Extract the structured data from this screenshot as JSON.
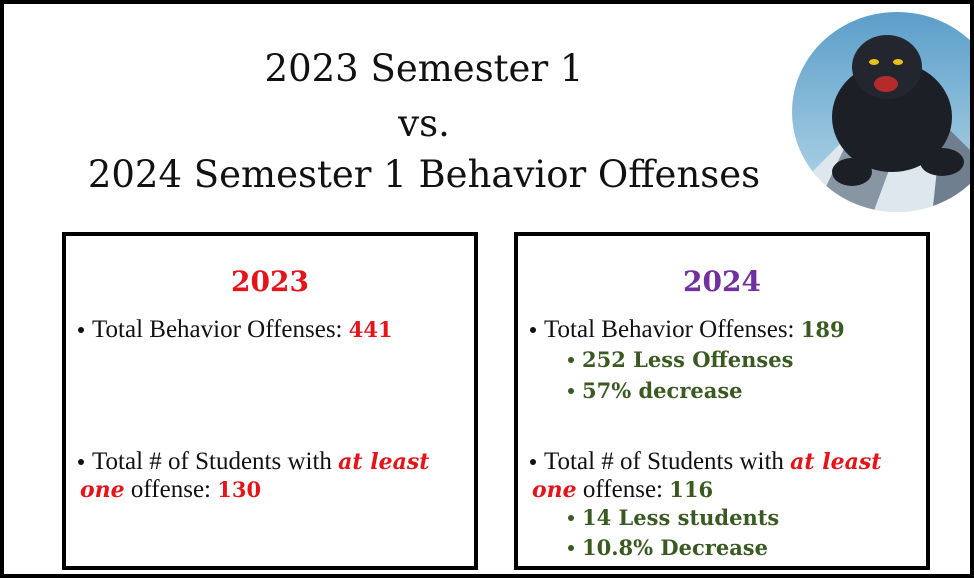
{
  "header": {
    "title_lines": [
      "2023 Semester 1",
      "vs.",
      "2024 Semester 1 Behavior Offenses"
    ]
  },
  "panels": [
    {
      "heading": "2023",
      "offenses_label": "Total Behavior Offenses: ",
      "offenses": "441",
      "students_label": "Total # of Students with ",
      "emphasis_1": "at least",
      "emphasis_2": "one",
      "students_suffix": " offense: ",
      "students": "130"
    },
    {
      "heading": "2024",
      "offenses_label": "Total Behavior Offenses: ",
      "offenses": "189",
      "offense_notes": [
        "252 Less Offenses",
        "57% decrease"
      ],
      "students_label": "Total # of Students with ",
      "emphasis_1": "at least",
      "emphasis_2": "one",
      "students_suffix": " offense: ",
      "students": "116",
      "student_notes": [
        "14 Less students",
        "10.8% Decrease"
      ]
    }
  ]
}
